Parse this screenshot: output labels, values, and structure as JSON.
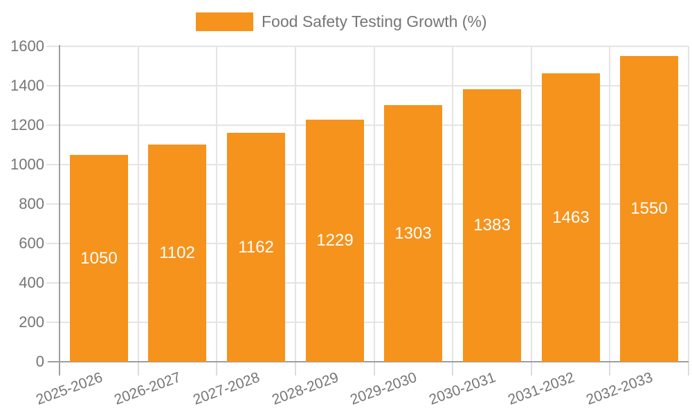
{
  "legend": {
    "label": "Food Safety Testing Growth (%)"
  },
  "chart_data": {
    "type": "bar",
    "title": "Food Safety Testing Growth (%)",
    "series": [
      {
        "name": "Food Safety Testing Growth (%)",
        "values": [
          1050,
          1102,
          1162,
          1229,
          1303,
          1383,
          1463,
          1550
        ]
      }
    ],
    "categories": [
      "2025-2026",
      "2026-2027",
      "2027-2028",
      "2028-2029",
      "2029-2030",
      "2030-2031",
      "2031-2032",
      "2032-2033"
    ],
    "value_labels": [
      "1050",
      "1102",
      "1162",
      "1229",
      "1303",
      "1383",
      "1463",
      "1550"
    ],
    "xlabel": "",
    "ylabel": "",
    "ylim": [
      0,
      1600
    ],
    "yticks": [
      0,
      200,
      400,
      600,
      800,
      1000,
      1200,
      1400,
      1600
    ],
    "grid": true,
    "legend_position": "top",
    "x_label_rotation": -20,
    "bar_label_position": "center-inside"
  },
  "colors": {
    "bar": "#f5931d",
    "bar_value_text": "#ffffff",
    "axis_line": "#9e9e9e",
    "gridline": "#e4e4e4",
    "tick_line": "#dcdcdc",
    "label_text": "#757575",
    "background": "#ffffff"
  }
}
